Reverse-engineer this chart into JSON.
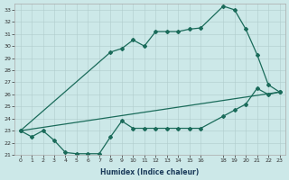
{
  "xlabel": "Humidex (Indice chaleur)",
  "background_color": "#cce8e8",
  "line_color": "#1a6b5a",
  "x_ticks": [
    0,
    1,
    2,
    3,
    4,
    5,
    6,
    7,
    8,
    9,
    10,
    11,
    12,
    13,
    14,
    15,
    16,
    18,
    19,
    20,
    21,
    22,
    23
  ],
  "xlim": [
    -0.5,
    23.5
  ],
  "ylim": [
    21,
    33.5
  ],
  "y_ticks": [
    21,
    22,
    23,
    24,
    25,
    26,
    27,
    28,
    29,
    30,
    31,
    32,
    33
  ],
  "line1_x": [
    0,
    1,
    2,
    3,
    4,
    5,
    6,
    7,
    8,
    9,
    10,
    11,
    12,
    13,
    14,
    15,
    16,
    18,
    19,
    20,
    21,
    22,
    23
  ],
  "line1_y": [
    23,
    22.5,
    23,
    22.2,
    21.2,
    21.1,
    21.1,
    21.1,
    22.5,
    23.8,
    23.2,
    23.2,
    23.2,
    23.2,
    23.2,
    23.2,
    23.2,
    24.2,
    24.7,
    25.2,
    26.5,
    26.0,
    26.2
  ],
  "line2_x": [
    0,
    23
  ],
  "line2_y": [
    23,
    26.2
  ],
  "line3_x": [
    0,
    8,
    9,
    10,
    11,
    12,
    13,
    14,
    15,
    16,
    18,
    19,
    20,
    21,
    22,
    23
  ],
  "line3_y": [
    23,
    29.5,
    29.8,
    30.5,
    30.0,
    31.2,
    31.2,
    31.2,
    31.4,
    31.5,
    33.3,
    33.0,
    31.4,
    29.3,
    26.8,
    26.2
  ]
}
